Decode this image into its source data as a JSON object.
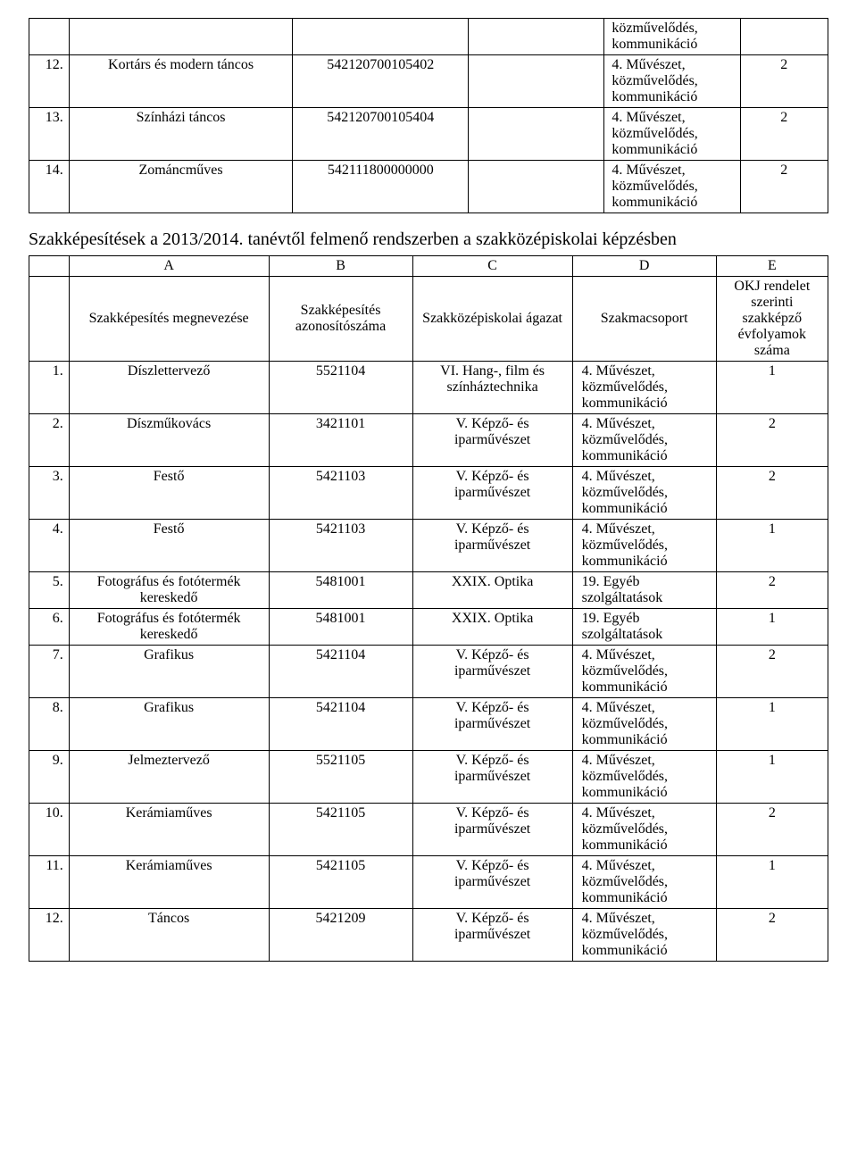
{
  "table1": {
    "rows": [
      {
        "num": "",
        "name": "",
        "id": "",
        "agazat": "közművelődés, kommunikáció",
        "ev": ""
      },
      {
        "num": "12.",
        "name": "Kortárs és modern táncos",
        "id": "542120700105402",
        "agazat": "4. Művészet, közművelődés, kommunikáció",
        "ev": "2"
      },
      {
        "num": "13.",
        "name": "Színházi táncos",
        "id": "542120700105404",
        "agazat": "4. Művészet, közművelődés, kommunikáció",
        "ev": "2"
      },
      {
        "num": "14.",
        "name": "Zománcműves",
        "id": "542111800000000",
        "agazat": "4. Művészet, közművelődés, kommunikáció",
        "ev": "2"
      }
    ]
  },
  "section_heading": "Szakképesítések a 2013/2014. tanévtől felmenő rendszerben a szakközépiskolai képzésben",
  "table2": {
    "top_header": {
      "a": "A",
      "b": "B",
      "c": "C",
      "d": "D",
      "e": "E"
    },
    "col_header": {
      "name": "Szakképesítés megnevezése",
      "id": "Szakképesítés azonosítószáma",
      "agazat": "Szakközépiskolai ágazat",
      "group": "Szakmacsoport",
      "ev": "OKJ rendelet szerinti szakképző évfolyamok száma"
    },
    "rows": [
      {
        "num": "1.",
        "name": "Díszlettervező",
        "id": "5521104",
        "agazat": "VI. Hang-, film és színháztechnika",
        "group": "4. Művészet, közművelődés, kommunikáció",
        "ev": "1"
      },
      {
        "num": "2.",
        "name": "Díszműkovács",
        "id": "3421101",
        "agazat": "V. Képző- és iparművészet",
        "group": "4. Művészet, közművelődés, kommunikáció",
        "ev": "2"
      },
      {
        "num": "3.",
        "name": "Festő",
        "id": "5421103",
        "agazat": "V. Képző- és iparművészet",
        "group": "4. Művészet, közművelődés, kommunikáció",
        "ev": "2"
      },
      {
        "num": "4.",
        "name": "Festő",
        "id": "5421103",
        "agazat": "V. Képző- és iparművészet",
        "group": "4. Művészet, közművelődés, kommunikáció",
        "ev": "1"
      },
      {
        "num": "5.",
        "name": "Fotográfus és fotótermék kereskedő",
        "id": "5481001",
        "agazat": "XXIX. Optika",
        "group": "19. Egyéb szolgáltatások",
        "ev": "2"
      },
      {
        "num": "6.",
        "name": "Fotográfus és fotótermék kereskedő",
        "id": "5481001",
        "agazat": "XXIX. Optika",
        "group": "19. Egyéb szolgáltatások",
        "ev": "1"
      },
      {
        "num": "7.",
        "name": "Grafikus",
        "id": "5421104",
        "agazat": "V. Képző- és iparművészet",
        "group": "4. Művészet, közművelődés, kommunikáció",
        "ev": "2"
      },
      {
        "num": "8.",
        "name": "Grafikus",
        "id": "5421104",
        "agazat": "V. Képző- és iparművészet",
        "group": "4. Művészet, közművelődés, kommunikáció",
        "ev": "1"
      },
      {
        "num": "9.",
        "name": "Jelmeztervező",
        "id": "5521105",
        "agazat": "V. Képző- és iparművészet",
        "group": "4. Művészet, közművelődés, kommunikáció",
        "ev": "1"
      },
      {
        "num": "10.",
        "name": "Kerámiaműves",
        "id": "5421105",
        "agazat": "V. Képző- és iparművészet",
        "group": "4. Művészet, közművelődés, kommunikáció",
        "ev": "2"
      },
      {
        "num": "11.",
        "name": "Kerámiaműves",
        "id": "5421105",
        "agazat": "V. Képző- és iparművészet",
        "group": "4. Művészet, közművelődés, kommunikáció",
        "ev": "1"
      },
      {
        "num": "12.",
        "name": "Táncos",
        "id": "5421209",
        "agazat": "V. Képző- és iparművészet",
        "group": "4. Művészet, közművelődés, kommunikáció",
        "ev": "2"
      }
    ]
  }
}
